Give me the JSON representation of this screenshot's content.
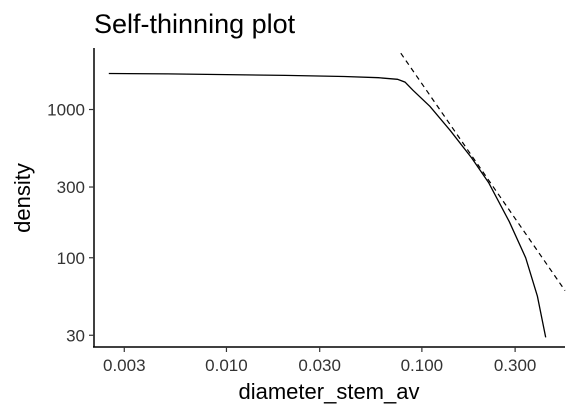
{
  "chart_data": {
    "type": "line",
    "title": "Self-thinning plot",
    "xlabel": "diameter_stem_av",
    "ylabel": "density",
    "x_scale": "log",
    "y_scale": "log",
    "xlim": [
      0.0021,
      0.54
    ],
    "ylim": [
      25,
      2600
    ],
    "x_ticks": [
      {
        "value": 0.003,
        "label": "0.003"
      },
      {
        "value": 0.01,
        "label": "0.010"
      },
      {
        "value": 0.03,
        "label": "0.030"
      },
      {
        "value": 0.1,
        "label": "0.100"
      },
      {
        "value": 0.3,
        "label": "0.300"
      }
    ],
    "y_ticks": [
      {
        "value": 30,
        "label": "30"
      },
      {
        "value": 100,
        "label": "100"
      },
      {
        "value": 300,
        "label": "300"
      },
      {
        "value": 1000,
        "label": "1000"
      }
    ],
    "grid": false,
    "series": [
      {
        "style": "solid",
        "x": [
          0.0025,
          0.005,
          0.01,
          0.02,
          0.04,
          0.06,
          0.075,
          0.082,
          0.09,
          0.11,
          0.14,
          0.18,
          0.22,
          0.28,
          0.34,
          0.39,
          0.43
        ],
        "y": [
          1750,
          1740,
          1720,
          1700,
          1670,
          1640,
          1600,
          1530,
          1350,
          1050,
          720,
          470,
          320,
          175,
          100,
          55,
          29
        ]
      },
      {
        "style": "dashed",
        "x": [
          0.078,
          0.54
        ],
        "y": [
          2400,
          60
        ]
      }
    ]
  }
}
